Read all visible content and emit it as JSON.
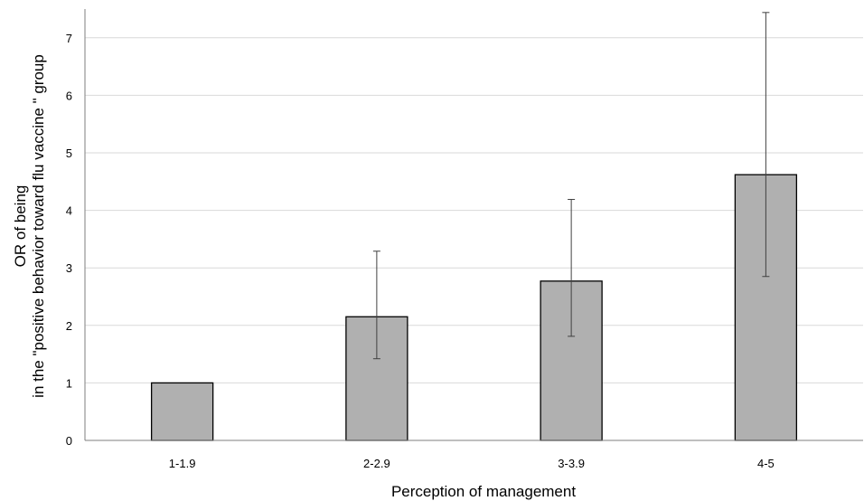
{
  "chart_data": {
    "type": "bar",
    "title": "",
    "xlabel": "Perception of management",
    "ylabel_line1": "OR of being",
    "ylabel_line2": "in the \"positive behavior toward flu vaccine \" group",
    "categories": [
      "1-1.9",
      "2-2.9",
      "3-3.9",
      "4-5"
    ],
    "values": [
      1.0,
      2.15,
      2.77,
      4.62
    ],
    "error_low": [
      null,
      1.42,
      1.81,
      2.85
    ],
    "error_high": [
      null,
      3.29,
      4.19,
      7.44
    ],
    "ylim": [
      0,
      7.5
    ],
    "yticks": [
      0,
      1,
      2,
      3,
      4,
      5,
      6,
      7
    ],
    "grid": true,
    "colors": {
      "bar_fill": "#b0b0b0",
      "bar_stroke": "#000000",
      "grid": "#d9d9d9",
      "axis": "#7f7f7f",
      "error": "#404040"
    }
  }
}
